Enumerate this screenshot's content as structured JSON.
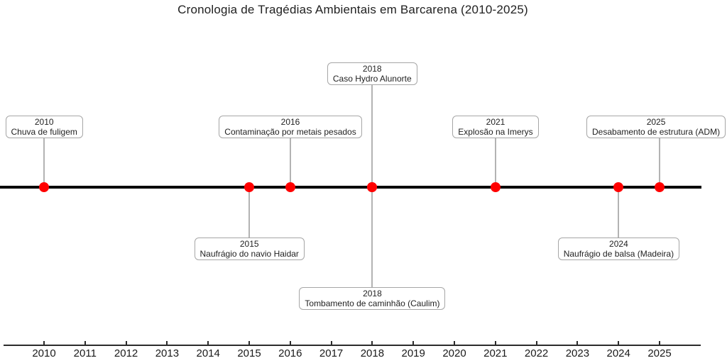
{
  "chart_data": {
    "type": "timeline",
    "title": "Cronologia de Tragédias Ambientais em Barcarena (2010-2025)",
    "xlabel": "",
    "ylabel": "",
    "axis": {
      "range": [
        2010,
        2025
      ],
      "years": [
        2010,
        2011,
        2012,
        2013,
        2014,
        2015,
        2016,
        2017,
        2018,
        2019,
        2020,
        2021,
        2022,
        2023,
        2024,
        2025
      ],
      "grid": "off",
      "legend": "none",
      "ticks_inward": true
    },
    "events": [
      {
        "year": 2010,
        "label": "Chuva de fuligem",
        "side": "above",
        "tier": 1
      },
      {
        "year": 2015,
        "label": "Naufrágio do navio Haidar",
        "side": "below",
        "tier": 1
      },
      {
        "year": 2016,
        "label": "Contaminação por metais pesados",
        "side": "above",
        "tier": 1
      },
      {
        "year": 2018,
        "label": "Caso Hydro Alunorte",
        "side": "above",
        "tier": 2
      },
      {
        "year": 2018,
        "label": "Tombamento de caminhão (Caulim)",
        "side": "below",
        "tier": 2
      },
      {
        "year": 2021,
        "label": "Explosão na Imerys",
        "side": "above",
        "tier": 1
      },
      {
        "year": 2024,
        "label": "Naufrágio de balsa (Madeira)",
        "side": "below",
        "tier": 1
      },
      {
        "year": 2025,
        "label": "Desabamento de estrutura (ADM)",
        "side": "above",
        "tier": 1
      }
    ],
    "colors": {
      "dot": "#ff0000",
      "timeline": "#000000",
      "connector": "#b3b3b3",
      "box_border": "#a6a6a6",
      "text": "#1f1f1f",
      "axis": "#2b2b2b"
    }
  }
}
